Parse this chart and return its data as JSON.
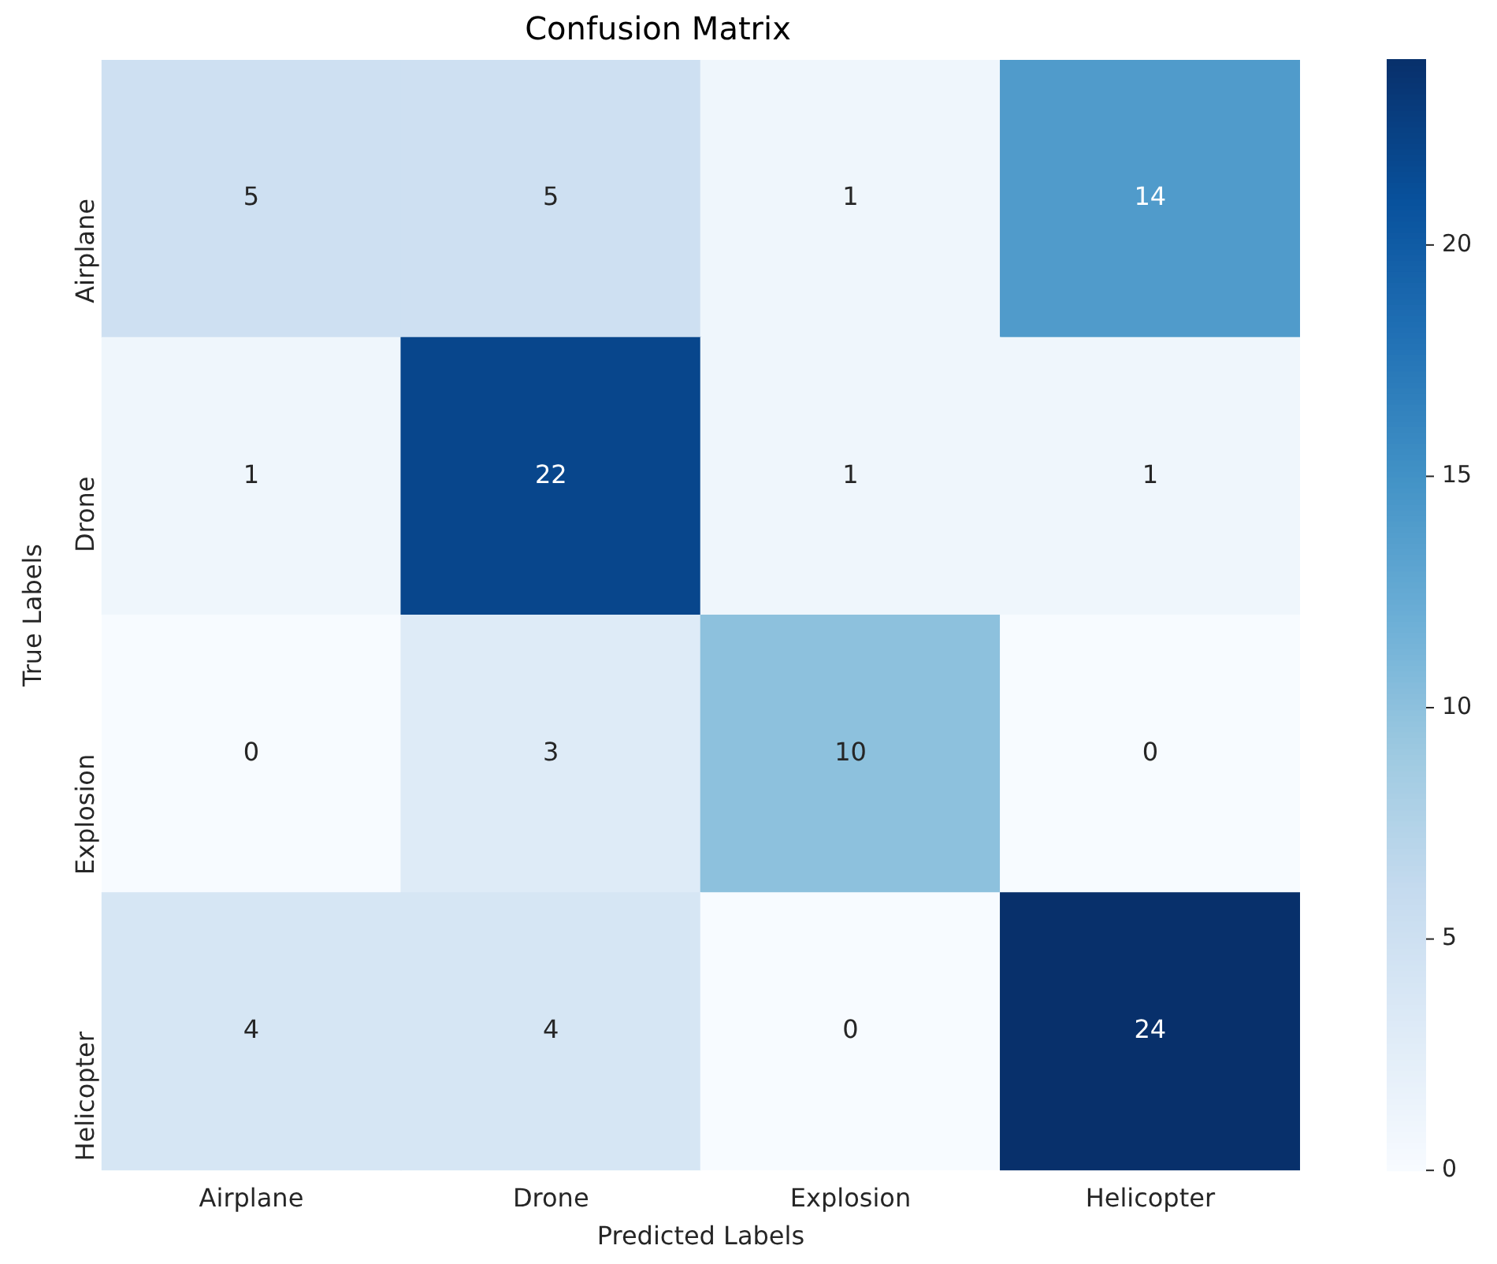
{
  "chart_data": {
    "type": "heatmap",
    "title": "Confusion Matrix",
    "xlabel": "Predicted Labels",
    "ylabel": "True Labels",
    "categories": [
      "Airplane",
      "Drone",
      "Explosion",
      "Helicopter"
    ],
    "y_categories": [
      "Airplane",
      "Drone",
      "Explosion",
      "Helicopter"
    ],
    "cells": [
      [
        5,
        5,
        1,
        14
      ],
      [
        1,
        22,
        1,
        1
      ],
      [
        0,
        3,
        10,
        0
      ],
      [
        4,
        4,
        0,
        24
      ]
    ],
    "clim": [
      0,
      24
    ],
    "cticks": [
      0,
      5,
      10,
      15,
      20
    ],
    "data_labels": true
  }
}
